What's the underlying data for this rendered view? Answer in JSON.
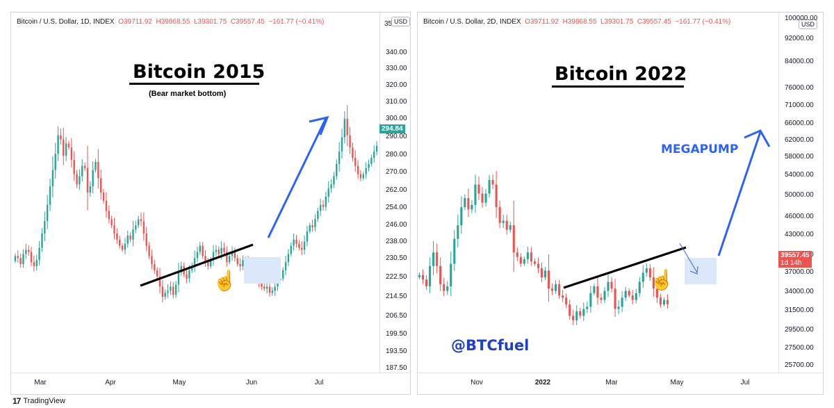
{
  "left": {
    "legend": {
      "symbol": "Bitcoin / U.S. Dollar, 1D, INDEX",
      "o": "O39711.92",
      "h": "H39868.55",
      "l": "L39301.75",
      "c": "C39557.45",
      "chg": "−161.77 (−0.41%)"
    },
    "currency": "USD",
    "title": "Bitcoin 2015",
    "subtitle": "(Bear market bottom)",
    "last_price_label": "294.84",
    "price_ticks": [
      "340.00",
      "330.00",
      "320.00",
      "310.00",
      "300.00",
      "290.00",
      "280.00",
      "270.00",
      "262.00",
      "254.00",
      "246.00",
      "238.00",
      "230.50",
      "222.50",
      "214.50",
      "206.50",
      "199.50",
      "193.50",
      "187.50"
    ],
    "top_tick": "35",
    "time_ticks": [
      "Mar",
      "Apr",
      "May",
      "Jun",
      "Jul"
    ]
  },
  "right": {
    "legend": {
      "symbol": "Bitcoin / U.S. Dollar, 2D, INDEX",
      "o": "O39711.92",
      "h": "H39868.55",
      "l": "L39301.75",
      "c": "C39557.45",
      "chg": "−161.77 (−0.41%)"
    },
    "currency": "USD",
    "title": "Bitcoin 2022",
    "annotation": "MEGAPUMP",
    "handle": "@BTCfuel",
    "last_price_label": "39557.45",
    "last_price_sub": "1d 14h",
    "price_ticks": [
      "100000.00",
      "92000.00",
      "84000.00",
      "76000.00",
      "71000.00",
      "66000.00",
      "62000.00",
      "58000.00",
      "54000.00",
      "50000.00",
      "46000.00",
      "43000.00",
      "40000.00",
      "37000.00",
      "34000.00",
      "31500.00",
      "29500.00",
      "27500.00",
      "25700.00"
    ],
    "time_ticks": [
      "Nov",
      "2022",
      "Mar",
      "May",
      "Jul"
    ]
  },
  "footer": {
    "brand": "TradingView",
    "logo": "17"
  },
  "colors": {
    "up": "#26a69a",
    "down": "#ef5350",
    "arrow": "#2962ff",
    "zone": "#dbe7fb",
    "hand": "#1e5bd8"
  },
  "chart_data": [
    {
      "type": "candlestick",
      "title": "Bitcoin 2015",
      "ylabel": "USD",
      "ylim": [
        183,
        360
      ],
      "x_ticks": [
        "Mar",
        "Apr",
        "May",
        "Jun",
        "Jul"
      ],
      "series": [
        {
          "values": [
            241,
            240,
            237,
            242,
            244,
            243,
            238,
            236,
            239,
            245,
            252,
            258,
            266,
            275,
            283,
            291,
            300,
            298,
            290,
            296,
            294,
            288,
            281,
            276,
            280,
            285,
            284,
            272,
            275,
            283,
            287,
            279,
            272,
            268,
            263,
            259,
            256,
            252,
            249,
            246,
            244,
            247,
            251,
            249,
            254,
            256,
            259,
            258,
            252,
            246,
            241,
            237,
            234,
            231,
            226,
            221,
            223,
            224,
            226,
            222,
            227,
            233,
            236,
            232,
            230,
            234,
            236,
            240,
            243,
            246,
            241,
            238,
            236,
            239,
            243,
            244,
            242,
            245,
            243,
            238,
            241,
            243,
            240,
            237,
            236,
            239,
            238,
            237,
            236,
            234,
            230,
            228,
            226,
            225,
            226,
            223,
            224,
            226,
            229,
            230,
            234,
            238,
            242,
            246,
            249,
            247,
            245,
            244,
            248,
            253,
            256,
            255,
            259,
            263,
            266,
            265,
            270,
            274,
            276,
            280,
            286,
            292,
            299,
            308,
            300,
            294,
            289,
            285,
            281,
            279,
            281,
            284,
            286,
            289,
            292,
            294.84
          ]
        }
      ]
    },
    {
      "type": "candlestick",
      "title": "Bitcoin 2022",
      "ylabel": "USD",
      "ylim": [
        24000,
        104000
      ],
      "x_ticks": [
        "Nov",
        "2022",
        "Mar",
        "May",
        "Jul"
      ],
      "series": [
        {
          "values": [
            46000,
            45000,
            43500,
            48000,
            51000,
            48000,
            44000,
            42500,
            43500,
            48500,
            54000,
            57000,
            61000,
            63000,
            60500,
            61500,
            66000,
            64000,
            62000,
            64000,
            67000,
            66000,
            61000,
            57500,
            58000,
            56000,
            57000,
            51000,
            50000,
            48500,
            49500,
            51000,
            49000,
            48500,
            47500,
            45500,
            47000,
            43000,
            42500,
            44000,
            41500,
            41000,
            39500,
            37000,
            36000,
            38000,
            37000,
            38500,
            39000,
            42000,
            43500,
            41000,
            40500,
            42500,
            44500,
            43000,
            38500,
            39000,
            41000,
            42500,
            41500,
            40500,
            42000,
            44500,
            46500,
            47500,
            45500,
            43000,
            41000,
            39500,
            40500,
            39557
          ]
        }
      ]
    }
  ]
}
